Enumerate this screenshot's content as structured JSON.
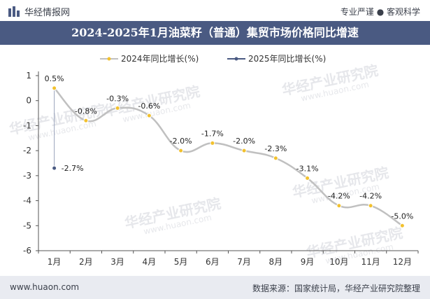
{
  "header": {
    "brand": "华经情报网",
    "tagline": "专业严谨 ● 客观科学"
  },
  "title": "2024-2025年1月油菜籽（普通）集贸市场价格同比增速",
  "footer": {
    "url": "www.huaon.com",
    "source": "数据来源：国家统计局，华经产业研究院整理"
  },
  "watermark": {
    "text": "华经产业研究院",
    "url": "www.huaon.com"
  },
  "colors": {
    "title_bar": "#4a5a82",
    "series_2024": "#c0c0c0",
    "series_2024_marker": "#f2c12e",
    "series_2025": "#4a5a82",
    "footer_bg": "#e9ebf1"
  },
  "chart_data": {
    "type": "line",
    "categories": [
      "1月",
      "2月",
      "3月",
      "4月",
      "5月",
      "6月",
      "7月",
      "8月",
      "9月",
      "10月",
      "11月",
      "12月"
    ],
    "series": [
      {
        "name": "2024年同比增长(%)",
        "values": [
          0.5,
          -0.8,
          -0.3,
          -0.6,
          -2.0,
          -1.7,
          -2.0,
          -2.3,
          -3.1,
          -4.2,
          -4.2,
          -5.0
        ],
        "labels": [
          "0.5%",
          "-0.8%",
          "-0.3%",
          "-0.6%",
          "-2.0%",
          "-1.7%",
          "-2.0%",
          "-2.3%",
          "-3.1%",
          "-4.2%",
          "-4.2%",
          "-5.0%"
        ]
      },
      {
        "name": "2025年同比增长(%)",
        "values": [
          -2.7,
          null,
          null,
          null,
          null,
          null,
          null,
          null,
          null,
          null,
          null,
          null
        ],
        "labels": [
          "-2.7%",
          "",
          "",
          "",
          "",
          "",
          "",
          "",
          "",
          "",
          "",
          ""
        ]
      }
    ],
    "yticks": [
      "1",
      "0",
      "-1",
      "-2",
      "-3",
      "-4",
      "-5",
      "-6"
    ],
    "ylim": [
      -6,
      1
    ],
    "legend_position": "top-center",
    "grid": false
  }
}
